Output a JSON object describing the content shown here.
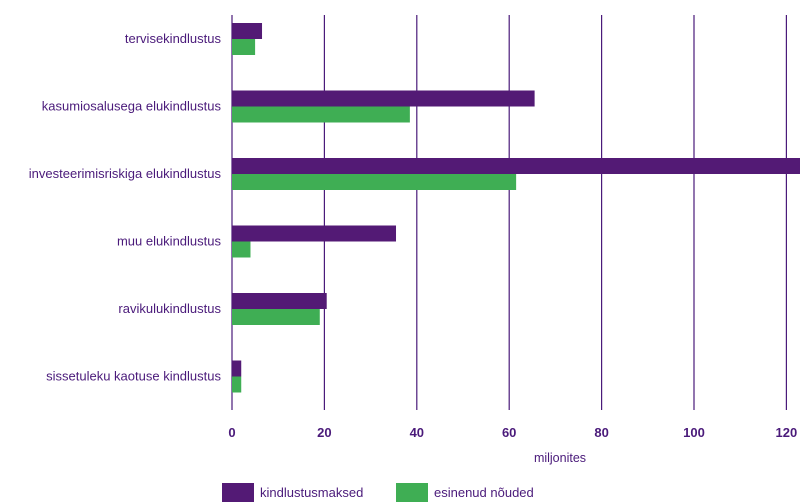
{
  "colors": {
    "text": "#4a1a7a",
    "grid": "#4a1a7a"
  },
  "chart_data": {
    "type": "bar",
    "orientation": "horizontal",
    "categories": [
      "tervisekindlustus",
      "kasumiosalusega elukindlustus",
      "investeerimisriskiga elukindlustus",
      "muu elukindlustus",
      "ravikulukindlustus",
      "sissetuleku kaotuse kindlustus"
    ],
    "series": [
      {
        "name": "kindlustusmaksed",
        "color": "#531a75",
        "values": [
          6.5,
          65.5,
          123,
          35.5,
          20.5,
          2
        ]
      },
      {
        "name": "esinenud nõuded",
        "color": "#3fae54",
        "values": [
          5,
          38.5,
          61.5,
          4,
          19,
          2
        ]
      }
    ],
    "xlim": [
      0,
      123
    ],
    "xticks": [
      0,
      20,
      40,
      60,
      80,
      100,
      120
    ],
    "xlabel": "miljonites",
    "grid": "vertical",
    "legend": "bottom-center"
  }
}
